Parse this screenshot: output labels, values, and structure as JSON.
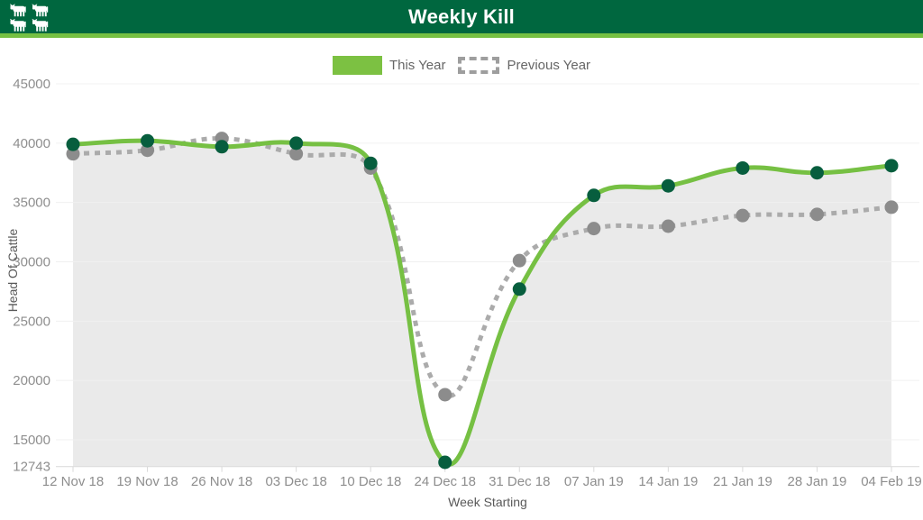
{
  "header": {
    "title": "Weekly Kill",
    "icon": "cattle-icon"
  },
  "axes": {
    "y_title": "Head Of Cattle",
    "x_title": "Week Starting"
  },
  "theme": {
    "header_bg": "#00673F",
    "header_accent": "#76C043",
    "legend_swatch_green": "#7CC142",
    "legend_dash_gray": "#9E9E9E",
    "area_fill": "#EAEAEA",
    "grid_color": "#F0F0F0",
    "axis_line_color": "#D9D9D9",
    "tick_text_color": "#8E8E8E"
  },
  "chart_data": {
    "type": "line",
    "title": "Weekly Kill",
    "xlabel": "Week Starting",
    "ylabel": "Head Of Cattle",
    "categories": [
      "12 Nov 18",
      "19 Nov 18",
      "26 Nov 18",
      "03 Dec 18",
      "10 Dec 18",
      "24 Dec 18",
      "31 Dec 18",
      "07 Jan 19",
      "14 Jan 19",
      "21 Jan 19",
      "28 Jan 19",
      "04 Feb 19"
    ],
    "series": [
      {
        "name": "This Year",
        "style": "solid",
        "fill": true,
        "line_color": "#76C043",
        "marker_color": "#075E3E",
        "values": [
          39900,
          40200,
          39700,
          40000,
          38300,
          13100,
          27700,
          35600,
          36400,
          37900,
          37500,
          38100
        ]
      },
      {
        "name": "Previous Year",
        "style": "dotted",
        "fill": false,
        "line_color": "#ABABAB",
        "marker_color": "#8C8C8C",
        "values": [
          39100,
          39400,
          40400,
          39100,
          37900,
          18800,
          30100,
          32800,
          33000,
          33900,
          34000,
          34600
        ]
      }
    ],
    "y_ticks": [
      45000,
      40000,
      35000,
      30000,
      25000,
      20000,
      15000,
      12743
    ],
    "ylim": [
      12743,
      45000
    ],
    "grid": true,
    "legend_position": "top"
  }
}
